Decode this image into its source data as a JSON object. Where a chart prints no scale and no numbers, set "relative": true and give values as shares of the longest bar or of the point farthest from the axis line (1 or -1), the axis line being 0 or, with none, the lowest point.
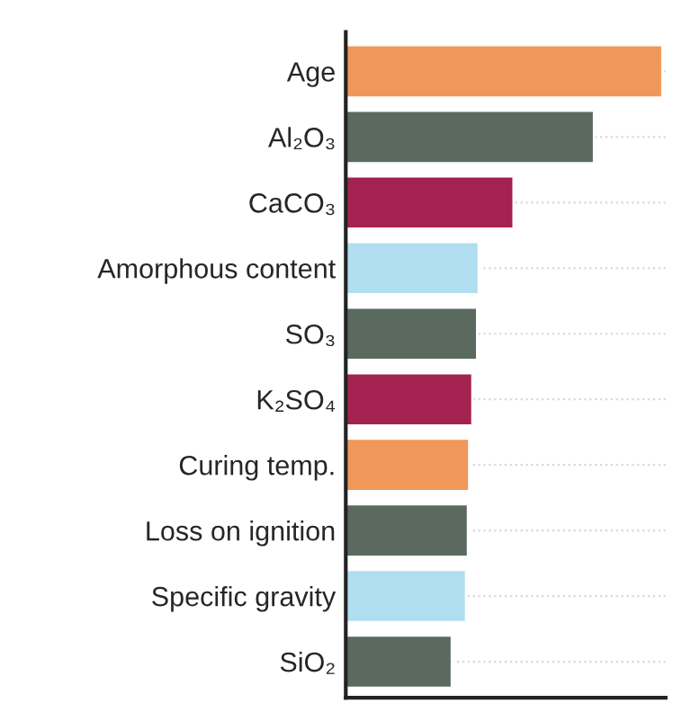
{
  "chart_data": {
    "type": "bar",
    "orientation": "horizontal",
    "relative": true,
    "grid": "y",
    "line_style": "dotted",
    "categories": [
      "Age",
      "Al₂O₃",
      "CaCO₃",
      "Amorphous content",
      "SO₃",
      "K₂SO₄",
      "Curing temp.",
      "Loss on ignition",
      "Specific gravity",
      "SiO₂"
    ],
    "values": [
      1,
      0.784,
      0.53,
      0.42,
      0.415,
      0.4,
      0.39,
      0.386,
      0.38,
      0.335
    ],
    "colors": [
      "#f0975a",
      "#5a6a5e",
      "#a3224f",
      "#b0def0",
      "#5a6a5e",
      "#a3224f",
      "#f0975a",
      "#5a6a5e",
      "#b0def0",
      "#5a6a5e"
    ]
  }
}
